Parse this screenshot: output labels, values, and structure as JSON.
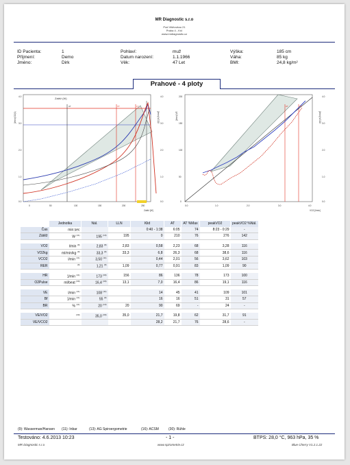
{
  "header": {
    "company": "MR Diagnostic s.r.o",
    "address_lines": [
      "Pod Višňovkou 21",
      "Praha 4 - Krč",
      "www.mrdiagnostic.cz"
    ]
  },
  "patient": {
    "id_label": "ID Pacienta:",
    "id_value": "1",
    "surname_label": "Příjmení:",
    "surname_value": "Demo",
    "name_label": "Jméno:",
    "name_value": "Dirk",
    "sex_label": "Pohlaví:",
    "sex_value": "muž",
    "dob_label": "Datum narození:",
    "dob_value": "1.1.1966",
    "age_label": "Věk:",
    "age_value": "47 Let",
    "height_label": "Výška:",
    "height_value": "185 cm",
    "weight_label": "Váha:",
    "weight_value": "85 kg",
    "bmi_label": "BMI:",
    "bmi_value": "24,8 kg/m²"
  },
  "section_title": "Prahové - 4 ploty",
  "chart_data": [
    {
      "type": "line",
      "legend": "Zátěž (W)",
      "xlabel": "Zátěž [W]",
      "x_ticks": [
        "0",
        "50",
        "100",
        "150",
        "200",
        "250"
      ],
      "y_ticks_left": [
        "0.0",
        "1.0",
        "2.0",
        "3.0",
        "4.0"
      ],
      "y_ticks_right": [
        "0.0",
        "1.0",
        "2.0",
        "3.0",
        "4.0"
      ],
      "ylabel_left": "[l/min] O2(1)",
      "ylabel_right": "[l/min] VCO2",
      "markers": [
        "AT",
        "VT",
        "LT"
      ]
    },
    {
      "type": "scatter",
      "xlabel": "VO2 [l/min]",
      "x_ticks": [
        "0.0",
        "1.0",
        "2.0",
        "3.0",
        "4.0"
      ],
      "y_ticks_left": [
        "0",
        "50",
        "100",
        "150",
        "200"
      ],
      "y_ticks_right": [
        "0.0",
        "1.0",
        "2.0",
        "3.0",
        "4.0"
      ],
      "ylabel_left": "[l/min] VE",
      "ylabel_right": "[l/min] VCO2",
      "markers": [
        "AT",
        "VT"
      ]
    }
  ],
  "table": {
    "headers": [
      "Jednotka",
      "Nál.",
      "LLN",
      "Klid",
      "AT",
      "AT %Max",
      "peakVO2",
      "peakVO2 %Nál."
    ],
    "groups": [
      [
        {
          "label": "Čas",
          "unit": "min:sec",
          "u_ref": "",
          "nal": "",
          "n_ref": "",
          "lln": "",
          "klid": "0:40 - 1:38",
          "at": "6:05",
          "atp": "74",
          "peak": "8:23 - 0:29",
          "peakp": "-"
        },
        {
          "label": "Zátěž",
          "unit": "W",
          "u_ref": "(11)",
          "nal": "195",
          "n_ref": "(10)",
          "lln": "195",
          "klid": "0",
          "at": "210",
          "atp": "76",
          "peak": "276",
          "peakp": "142"
        }
      ],
      [
        {
          "label": "VO2",
          "unit": "l/min",
          "u_ref": "(9)",
          "nal": "2,83",
          "n_ref": "(9)",
          "lln": "2,83",
          "klid": "0,58",
          "at": "2,23",
          "atp": "68",
          "peak": "3,28",
          "peakp": "116"
        },
        {
          "label": "VO2kg",
          "unit": "ml/min/kg",
          "u_ref": "(9)",
          "nal": "33,3",
          "n_ref": "(9)",
          "lln": "33,3",
          "klid": "6,8",
          "at": "26,3",
          "atp": "68",
          "peak": "38,6",
          "peakp": "116"
        },
        {
          "label": "VCO2",
          "unit": "l/min",
          "u_ref": "(11)",
          "nal": "3,50",
          "n_ref": "(11)",
          "lln": "",
          "klid": "0,44",
          "at": "2,01",
          "atp": "56",
          "peak": "3,62",
          "peakp": "103"
        },
        {
          "label": "RER",
          "unit": "",
          "u_ref": "(9)",
          "nal": "1,21",
          "n_ref": "(9)",
          "lln": "1,09",
          "klid": "0,77",
          "at": "0,91",
          "atp": "83",
          "peak": "1,09",
          "peakp": "90"
        }
      ],
      [
        {
          "label": "HR",
          "unit": "1/min",
          "u_ref": "(11)",
          "nal": "173",
          "n_ref": "(30)",
          "lln": "156",
          "klid": "86",
          "at": "136",
          "atp": "78",
          "peak": "173",
          "peakp": "100"
        },
        {
          "label": "O2Pulse",
          "unit": "ml/beat",
          "u_ref": "(30)",
          "nal": "16,4",
          "n_ref": "(30)",
          "lln": "13,1",
          "klid": "7,0",
          "at": "16,4",
          "atp": "86",
          "peak": "19,1",
          "peakp": "116"
        }
      ],
      [
        {
          "label": "VE",
          "unit": "l/min",
          "u_ref": "(11)",
          "nal": "108",
          "n_ref": "(11)",
          "lln": "",
          "klid": "14",
          "at": "45",
          "atp": "41",
          "peak": "109",
          "peakp": "101"
        },
        {
          "label": "Bf",
          "unit": "1/min",
          "u_ref": "(11)",
          "nal": "55",
          "n_ref": "(9)",
          "lln": "",
          "klid": "16",
          "at": "16",
          "atp": "51",
          "peak": "31",
          "peakp": "57"
        },
        {
          "label": "BR",
          "unit": "%",
          "u_ref": "(11)",
          "nal": "20",
          "n_ref": "(13)",
          "lln": "20",
          "klid": "90",
          "at": "69",
          "atp": "-",
          "peak": "24",
          "peakp": "-"
        }
      ],
      [
        {
          "label": "VE/VO2",
          "unit": "",
          "u_ref": "(30)",
          "nal": "35,0",
          "n_ref": "(30)",
          "lln": "35,0",
          "klid": "21,7",
          "at": "19,8",
          "atp": "62",
          "peak": "31,7",
          "peakp": "91"
        },
        {
          "label": "VE/VCO2",
          "unit": "",
          "u_ref": "",
          "nal": "",
          "n_ref": "",
          "lln": "",
          "klid": "28,2",
          "at": "21,7",
          "atp": "76",
          "peak": "28,6",
          "peakp": "-"
        }
      ]
    ]
  },
  "footer": {
    "refs": [
      "(9): Wasserman/Hansen",
      "(11): Inbar",
      "(13): AG Spiroergometrie",
      "(16): ACSM",
      "(30): Rühle"
    ],
    "tested": "Testováno: 4.6.2013 10:23",
    "page": "- 1 -",
    "conditions": "BTPS: 28,0 °C, 963 hPa, 35 %",
    "company": "MR Diagnostic s.r.o",
    "website": "www.spirometrie.cz",
    "version": "Blue Cherry V1.2.1.22"
  },
  "colors": {
    "accent": "#1a2a7a",
    "header_bg": "#dfe6f2",
    "red": "#e03020",
    "blue": "#3040c0",
    "orange": "#e8a040"
  }
}
